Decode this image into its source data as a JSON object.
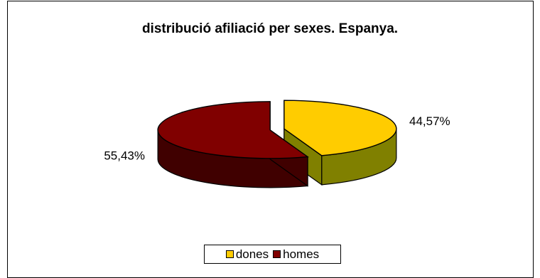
{
  "chart_data": {
    "type": "pie",
    "style": "3d",
    "title": "distribució afiliació per sexes. Espanya.",
    "slices": [
      {
        "name": "dones",
        "value": 44.57,
        "label": "44,57%",
        "color": "#FFCC00",
        "side_color": "#808000"
      },
      {
        "name": "homes",
        "value": 55.43,
        "label": "55,43%",
        "color": "#800000",
        "side_color": "#400000"
      }
    ],
    "legend": {
      "position": "bottom",
      "entries": [
        "dones",
        "homes"
      ]
    },
    "exploded": true
  }
}
